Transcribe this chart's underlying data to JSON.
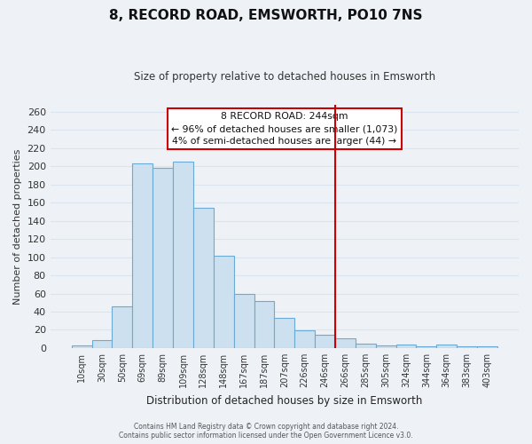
{
  "title": "8, RECORD ROAD, EMSWORTH, PO10 7NS",
  "subtitle": "Size of property relative to detached houses in Emsworth",
  "xlabel": "Distribution of detached houses by size in Emsworth",
  "ylabel": "Number of detached properties",
  "bar_labels": [
    "10sqm",
    "30sqm",
    "50sqm",
    "69sqm",
    "89sqm",
    "109sqm",
    "128sqm",
    "148sqm",
    "167sqm",
    "187sqm",
    "207sqm",
    "226sqm",
    "246sqm",
    "266sqm",
    "285sqm",
    "305sqm",
    "324sqm",
    "344sqm",
    "364sqm",
    "383sqm",
    "403sqm"
  ],
  "bar_values": [
    3,
    9,
    46,
    203,
    198,
    205,
    154,
    102,
    60,
    52,
    33,
    19,
    15,
    11,
    5,
    3,
    4,
    2,
    4,
    2,
    2
  ],
  "bar_color": "#cce0f0",
  "bar_edge_color": "#6aaad4",
  "bg_color": "#eef2f7",
  "grid_color": "#d8e4ef",
  "vline_x": 12.5,
  "vline_color": "#cc0000",
  "annotation_title": "8 RECORD ROAD: 244sqm",
  "annotation_line1": "← 96% of detached houses are smaller (1,073)",
  "annotation_line2": "4% of semi-detached houses are larger (44) →",
  "ylim": [
    0,
    268
  ],
  "yticks": [
    0,
    20,
    40,
    60,
    80,
    100,
    120,
    140,
    160,
    180,
    200,
    220,
    240,
    260
  ],
  "footer1": "Contains HM Land Registry data © Crown copyright and database right 2024.",
  "footer2": "Contains public sector information licensed under the Open Government Licence v3.0."
}
